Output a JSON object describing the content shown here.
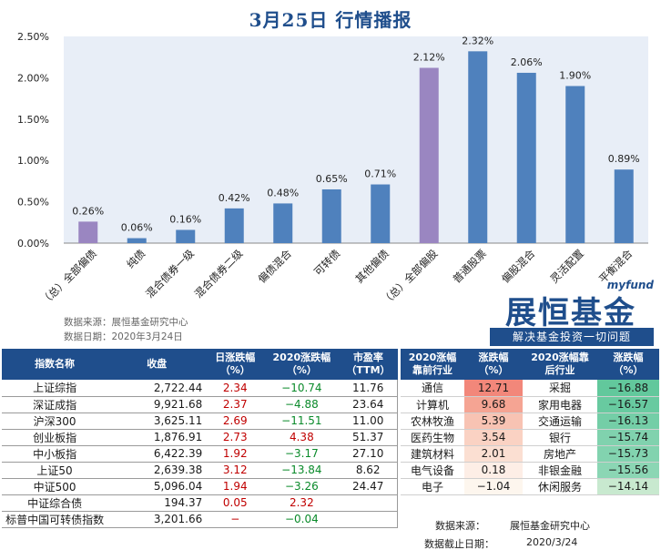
{
  "title": "3月25日  行情播报",
  "chart_data": {
    "type": "bar",
    "categories": [
      "（总）全部偏债",
      "纯债",
      "混合债券一级",
      "混合债券二级",
      "偏债混合",
      "可转债",
      "其他偏债",
      "（总）全部偏股",
      "普通股票",
      "偏股混合",
      "灵活配置",
      "平衡混合"
    ],
    "values": [
      0.26,
      0.06,
      0.16,
      0.42,
      0.48,
      0.65,
      0.71,
      2.12,
      2.32,
      2.06,
      1.9,
      0.89
    ],
    "data_labels": [
      "0.26%",
      "0.06%",
      "0.16%",
      "0.42%",
      "0.48%",
      "0.65%",
      "0.71%",
      "2.12%",
      "2.32%",
      "2.06%",
      "1.90%",
      "0.89%"
    ],
    "ylim": [
      0,
      2.5
    ],
    "yticks": [
      0,
      0.5,
      1.0,
      1.5,
      2.0,
      2.5
    ],
    "ytick_labels": [
      "0.00%",
      "0.50%",
      "1.00%",
      "1.50%",
      "2.00%",
      "2.50%"
    ],
    "highlight_indices": [
      0,
      7
    ],
    "grid": false,
    "colors": {
      "bar": "#4f81bd",
      "highlight": "#9a86c1",
      "plot_bg": "#e8eef7"
    }
  },
  "source": {
    "line1": "数据来源：展恒基金研究中心",
    "line2": "数据日期：2020年3月24日"
  },
  "logo": {
    "en": "myfund",
    "cn": "展恒基金",
    "slogan": "解决基金投资一切问题"
  },
  "left_table": {
    "headers": [
      "指数名称",
      "收盘",
      "日涨跌幅（%）",
      "2020涨跌幅（%）",
      "市盈率（TTM）"
    ],
    "rows": [
      {
        "name": "上证综指",
        "close": "2,722.44",
        "day": "2.34",
        "ytd": "−10.74",
        "ytd_dir": "down",
        "pe": "11.76"
      },
      {
        "name": "深证成指",
        "close": "9,921.68",
        "day": "2.37",
        "ytd": "−4.88",
        "ytd_dir": "down",
        "pe": "23.64"
      },
      {
        "name": "沪深300",
        "close": "3,625.11",
        "day": "2.69",
        "ytd": "−11.51",
        "ytd_dir": "down",
        "pe": "11.00"
      },
      {
        "name": "创业板指",
        "close": "1,876.91",
        "day": "2.73",
        "ytd": "4.38",
        "ytd_dir": "up",
        "pe": "51.37"
      },
      {
        "name": "中小板指",
        "close": "6,422.39",
        "day": "1.92",
        "ytd": "−3.17",
        "ytd_dir": "down",
        "pe": "27.10"
      },
      {
        "name": "上证50",
        "close": "2,639.38",
        "day": "3.12",
        "ytd": "−13.84",
        "ytd_dir": "down",
        "pe": "8.62"
      },
      {
        "name": "中证500",
        "close": "5,096.04",
        "day": "1.94",
        "ytd": "−3.26",
        "ytd_dir": "down",
        "pe": "24.47"
      },
      {
        "name": "中证综合债",
        "close": "194.37",
        "day": "0.05",
        "ytd": "2.32",
        "ytd_dir": "up",
        "pe": ""
      },
      {
        "name": "标普中国可转债指数",
        "close": "3,201.66",
        "day": "−",
        "ytd": "−0.04",
        "ytd_dir": "down",
        "pe": ""
      }
    ]
  },
  "right_table": {
    "headers": [
      "2020涨幅靠前行业",
      "涨跌幅（%）",
      "2020涨幅靠后行业",
      "涨跌幅（%）"
    ],
    "rows": [
      {
        "top_name": "通信",
        "top_val": "12.71",
        "top_color": "#f2877a",
        "bot_name": "采掘",
        "bot_val": "−16.88",
        "bot_color": "#62c89c"
      },
      {
        "top_name": "计算机",
        "top_val": "9.68",
        "top_color": "#f5a493",
        "bot_name": "家用电器",
        "bot_val": "−16.57",
        "bot_color": "#68caa0"
      },
      {
        "top_name": "农林牧渔",
        "top_val": "5.39",
        "top_color": "#f8c3b3",
        "bot_name": "交通运输",
        "bot_val": "−16.13",
        "bot_color": "#74cea7"
      },
      {
        "top_name": "医药生物",
        "top_val": "3.54",
        "top_color": "#fad2c3",
        "bot_name": "银行",
        "bot_val": "−15.74",
        "bot_color": "#80d2ae"
      },
      {
        "top_name": "建筑材料",
        "top_val": "2.01",
        "top_color": "#fbdfd2",
        "bot_name": "房地产",
        "bot_val": "−15.73",
        "bot_color": "#82d3af"
      },
      {
        "top_name": "电气设备",
        "top_val": "0.18",
        "top_color": "#fdeee6",
        "bot_name": "非银金融",
        "bot_val": "−15.56",
        "bot_color": "#8bd6b4"
      },
      {
        "top_name": "电子",
        "top_val": "−1.04",
        "top_color": "#fdf6ee",
        "bot_name": "休闲服务",
        "bot_val": "−14.14",
        "bot_color": "#c8e9cf"
      }
    ],
    "note1_label": "数据来源：",
    "note1_value": "展恒基金研究中心",
    "note2_label": "数据截止日期：",
    "note2_value": "2020/3/24"
  }
}
